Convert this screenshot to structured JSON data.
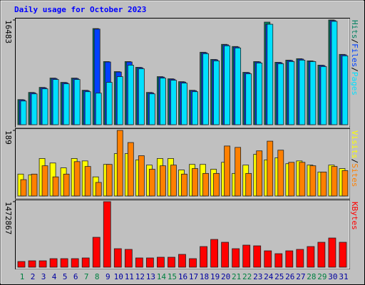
{
  "title": "Daily usage for October 2023",
  "legend_separator": "/",
  "chart_data": [
    {
      "type": "bar",
      "ylim": [
        0,
        16483
      ],
      "yticks": [
        16483
      ],
      "series": [
        {
          "name": "Hits",
          "color": "#008060",
          "values": [
            3952,
            5080,
            5871,
            7338,
            6661,
            7338,
            5419,
            15128,
            9935,
            8354,
            9935,
            9032,
            5080,
            7564,
            7225,
            6774,
            5419,
            11403,
            10274,
            12645,
            12306,
            8242,
            9935,
            16144,
            9822,
            10161,
            10387,
            10048,
            9371,
            16483,
            11064
          ]
        },
        {
          "name": "Files",
          "color": "#0040ff",
          "values": [
            3900,
            5020,
            5810,
            7270,
            6600,
            7270,
            5360,
            15050,
            9870,
            8290,
            9870,
            8970,
            5020,
            7500,
            7160,
            6710,
            5360,
            11330,
            10210,
            12570,
            12230,
            8180,
            9870,
            15800,
            9760,
            10100,
            10320,
            9980,
            9310,
            16400,
            11000
          ]
        },
        {
          "name": "Pages",
          "color": "#00e0ff",
          "values": [
            3726,
            4854,
            5645,
            7112,
            6435,
            7112,
            5193,
            4967,
            6661,
            7564,
            9371,
            8806,
            4854,
            7338,
            6999,
            6548,
            5193,
            11177,
            10048,
            12419,
            12080,
            8016,
            9709,
            15805,
            9596,
            9935,
            10161,
            9935,
            9145,
            16257,
            10838
          ]
        }
      ]
    },
    {
      "type": "bar",
      "ylim": [
        0,
        189
      ],
      "yticks": [
        189
      ],
      "series": [
        {
          "name": "Visits",
          "color": "#ffff00",
          "values": [
            63,
            61,
            108,
            95,
            81,
            108,
            101,
            55,
            91,
            122,
            122,
            104,
            89,
            108,
            108,
            75,
            91,
            91,
            77,
            97,
            65,
            89,
            120,
            104,
            110,
            93,
            101,
            89,
            69,
            89,
            79
          ]
        },
        {
          "name": "Sites",
          "color": "#ff8000",
          "values": [
            47,
            63,
            87,
            55,
            63,
            99,
            85,
            39,
            91,
            189,
            154,
            116,
            77,
            87,
            89,
            63,
            79,
            65,
            65,
            144,
            140,
            65,
            130,
            158,
            132,
            97,
            97,
            87,
            69,
            85,
            73
          ]
        }
      ]
    },
    {
      "type": "bar",
      "ylim": [
        0,
        1472867
      ],
      "yticks": [
        1472867
      ],
      "categories": [
        "1",
        "2",
        "3",
        "4",
        "5",
        "6",
        "7",
        "8",
        "9",
        "10",
        "11",
        "12",
        "13",
        "14",
        "15",
        "16",
        "17",
        "18",
        "19",
        "20",
        "21",
        "22",
        "23",
        "24",
        "25",
        "26",
        "27",
        "28",
        "29",
        "30",
        "31"
      ],
      "weekend_indices": [
        0,
        6,
        7,
        13,
        14,
        20,
        21,
        27,
        28
      ],
      "weekend_color": "#008040",
      "weekday_color": "#0000a0",
      "series": [
        {
          "name": "KBytes",
          "color": "#ff0000",
          "values": [
            128000,
            144000,
            144000,
            192000,
            192000,
            192000,
            208000,
            672000,
            1472867,
            416000,
            400000,
            208000,
            208000,
            224000,
            224000,
            288000,
            192000,
            464000,
            624000,
            560000,
            416000,
            496000,
            480000,
            368000,
            304000,
            368000,
            400000,
            464000,
            560000,
            656000,
            560000
          ]
        }
      ]
    }
  ]
}
